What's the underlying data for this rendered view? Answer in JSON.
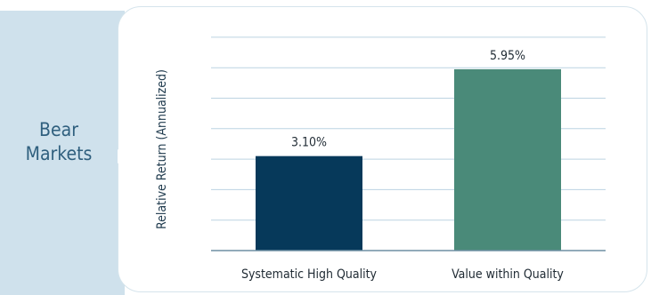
{
  "panel": {
    "label_line1": "Bear",
    "label_line2": "Markets"
  },
  "chart_data": {
    "type": "bar",
    "categories": [
      "Systematic High Quality",
      "Value within Quality"
    ],
    "values": [
      3.1,
      5.95
    ],
    "value_labels": [
      "3.10%",
      "5.95%"
    ],
    "ylabel": "Relative Return (Annualized)",
    "xlabel": "",
    "ylim": [
      0,
      7
    ],
    "grid": true,
    "colors": [
      "#06395a",
      "#4a8a79"
    ]
  },
  "colors": {
    "panel_bg": "#cfe1ec",
    "panel_text": "#2f5f7e",
    "card_border": "#d5e4ec",
    "grid": "#bcd3e2",
    "axis": "#6f8fa3"
  }
}
